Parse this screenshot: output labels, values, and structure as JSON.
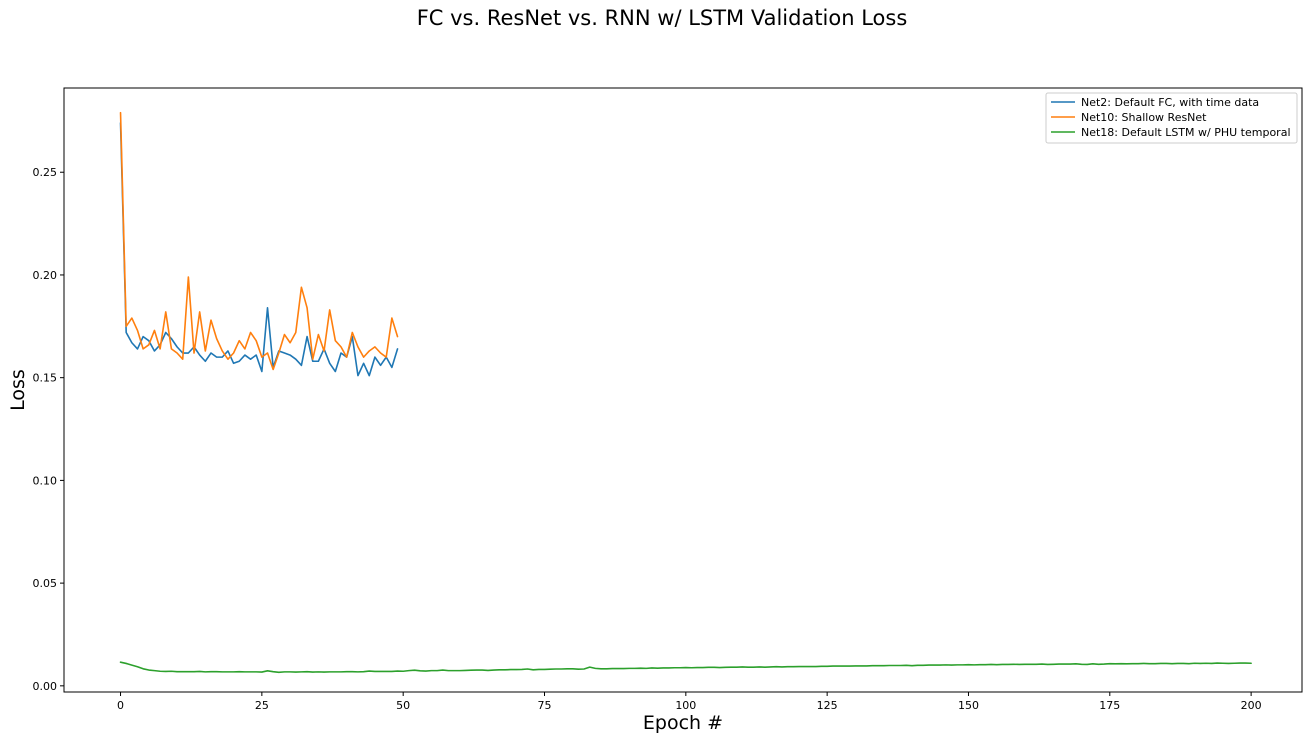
{
  "chart_data": {
    "type": "line",
    "title": "FC vs. ResNet vs. RNN w/ LSTM Validation Loss",
    "xlabel": "Epoch #",
    "ylabel": "Loss",
    "xlim": [
      -10,
      209
    ],
    "ylim": [
      -0.003,
      0.291
    ],
    "xticks": [
      0,
      25,
      50,
      75,
      100,
      125,
      150,
      175,
      200
    ],
    "xtick_labels": [
      "0",
      "25",
      "50",
      "75",
      "100",
      "125",
      "150",
      "175",
      "200"
    ],
    "yticks": [
      0.0,
      0.05,
      0.1,
      0.15,
      0.2,
      0.25
    ],
    "ytick_labels": [
      "0.00",
      "0.05",
      "0.10",
      "0.15",
      "0.20",
      "0.25"
    ],
    "grid": false,
    "legend_position": "top-right",
    "series": [
      {
        "name": "Net2: Default FC, with time data",
        "color": "#1f77b4",
        "x_start": 0,
        "values": [
          0.274,
          0.172,
          0.167,
          0.164,
          0.17,
          0.168,
          0.163,
          0.166,
          0.172,
          0.169,
          0.165,
          0.162,
          0.162,
          0.165,
          0.161,
          0.158,
          0.162,
          0.16,
          0.16,
          0.163,
          0.157,
          0.158,
          0.161,
          0.159,
          0.161,
          0.153,
          0.184,
          0.155,
          0.163,
          0.162,
          0.161,
          0.159,
          0.156,
          0.17,
          0.158,
          0.158,
          0.164,
          0.157,
          0.153,
          0.162,
          0.16,
          0.17,
          0.151,
          0.157,
          0.151,
          0.16,
          0.156,
          0.16,
          0.155,
          0.164
        ]
      },
      {
        "name": "Net10: Shallow ResNet",
        "color": "#ff7f0e",
        "x_start": 0,
        "values": [
          0.279,
          0.175,
          0.179,
          0.173,
          0.164,
          0.166,
          0.173,
          0.164,
          0.182,
          0.164,
          0.162,
          0.159,
          0.199,
          0.162,
          0.182,
          0.163,
          0.178,
          0.169,
          0.163,
          0.159,
          0.162,
          0.168,
          0.164,
          0.172,
          0.168,
          0.16,
          0.162,
          0.154,
          0.162,
          0.171,
          0.167,
          0.172,
          0.194,
          0.184,
          0.159,
          0.171,
          0.163,
          0.183,
          0.168,
          0.165,
          0.16,
          0.172,
          0.165,
          0.16,
          0.163,
          0.165,
          0.162,
          0.16,
          0.179,
          0.17
        ]
      },
      {
        "name": "Net18: Default LSTM w/ PHU temporal",
        "color": "#2ca02c",
        "x_start": 0,
        "values": [
          0.0115,
          0.0109,
          0.0101,
          0.0093,
          0.0083,
          0.0077,
          0.0074,
          0.0071,
          0.007,
          0.0071,
          0.0069,
          0.0069,
          0.0069,
          0.0069,
          0.007,
          0.0068,
          0.0069,
          0.0069,
          0.0068,
          0.0068,
          0.0068,
          0.0069,
          0.0068,
          0.0068,
          0.0068,
          0.0067,
          0.0073,
          0.0069,
          0.0066,
          0.0068,
          0.0068,
          0.0067,
          0.0068,
          0.0069,
          0.0067,
          0.0068,
          0.0067,
          0.0068,
          0.0068,
          0.0068,
          0.0069,
          0.0069,
          0.0068,
          0.0069,
          0.0072,
          0.007,
          0.007,
          0.007,
          0.007,
          0.0072,
          0.0071,
          0.0074,
          0.0076,
          0.0073,
          0.0072,
          0.0074,
          0.0074,
          0.0077,
          0.0074,
          0.0074,
          0.0074,
          0.0075,
          0.0076,
          0.0077,
          0.0077,
          0.0075,
          0.0077,
          0.0078,
          0.0078,
          0.0079,
          0.0079,
          0.008,
          0.0082,
          0.0078,
          0.008,
          0.008,
          0.0081,
          0.0082,
          0.0082,
          0.0083,
          0.0083,
          0.0081,
          0.0082,
          0.0091,
          0.0085,
          0.0083,
          0.0083,
          0.0084,
          0.0084,
          0.0084,
          0.0085,
          0.0085,
          0.0086,
          0.0085,
          0.0087,
          0.0086,
          0.0087,
          0.0087,
          0.0088,
          0.0088,
          0.0089,
          0.0088,
          0.0089,
          0.0089,
          0.009,
          0.009,
          0.0089,
          0.009,
          0.0091,
          0.0091,
          0.0092,
          0.0091,
          0.0091,
          0.0092,
          0.0091,
          0.0092,
          0.0093,
          0.0092,
          0.0093,
          0.0093,
          0.0094,
          0.0094,
          0.0094,
          0.0094,
          0.0095,
          0.0095,
          0.0096,
          0.0096,
          0.0096,
          0.0096,
          0.0097,
          0.0097,
          0.0097,
          0.0098,
          0.0098,
          0.0098,
          0.0099,
          0.0099,
          0.0099,
          0.01,
          0.0098,
          0.01,
          0.01,
          0.0101,
          0.0101,
          0.0101,
          0.0102,
          0.0101,
          0.0102,
          0.0102,
          0.0103,
          0.0102,
          0.0103,
          0.0103,
          0.0104,
          0.0103,
          0.0104,
          0.0104,
          0.0105,
          0.0104,
          0.0105,
          0.0105,
          0.0105,
          0.0106,
          0.0104,
          0.0105,
          0.0106,
          0.0106,
          0.0106,
          0.0107,
          0.0105,
          0.0104,
          0.0107,
          0.0105,
          0.0106,
          0.0108,
          0.0107,
          0.0108,
          0.0107,
          0.0108,
          0.0108,
          0.0109,
          0.0108,
          0.0108,
          0.0109,
          0.0109,
          0.0108,
          0.0109,
          0.0109,
          0.0108,
          0.011,
          0.0109,
          0.011,
          0.0109,
          0.0111,
          0.011,
          0.0109,
          0.011,
          0.0111,
          0.0111,
          0.011
        ]
      }
    ]
  }
}
